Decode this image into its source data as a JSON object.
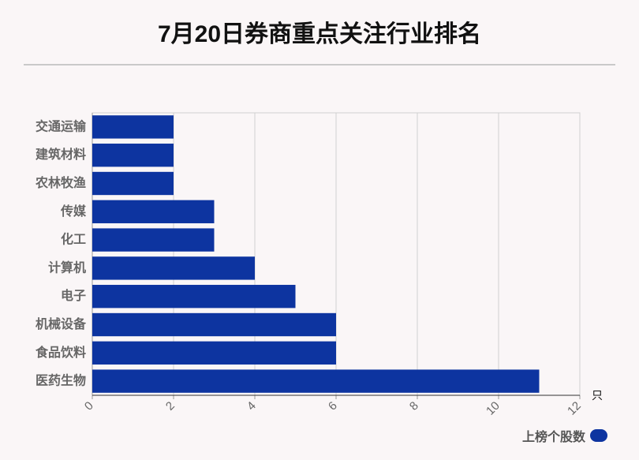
{
  "title": "7月20日券商重点关注行业排名",
  "legend": {
    "label": "上榜个股数"
  },
  "colors": {
    "bar": "#0d34a0",
    "grid": "#d0d0d0",
    "axis": "#999999"
  },
  "chart_data": {
    "type": "bar",
    "orientation": "horizontal",
    "title": "7月20日券商重点关注行业排名",
    "categories": [
      "交通运输",
      "建筑材料",
      "农林牧渔",
      "传媒",
      "化工",
      "计算机",
      "电子",
      "机械设备",
      "食品饮料",
      "医药生物"
    ],
    "series": [
      {
        "name": "上榜个股数",
        "values": [
          2,
          2,
          2,
          3,
          3,
          4,
          5,
          6,
          6,
          11
        ]
      }
    ],
    "xlim": [
      0,
      12
    ],
    "xticks": [
      0,
      2,
      4,
      6,
      8,
      10,
      12
    ],
    "xunit": "只",
    "grid": true,
    "legend_position": "bottom-right"
  }
}
